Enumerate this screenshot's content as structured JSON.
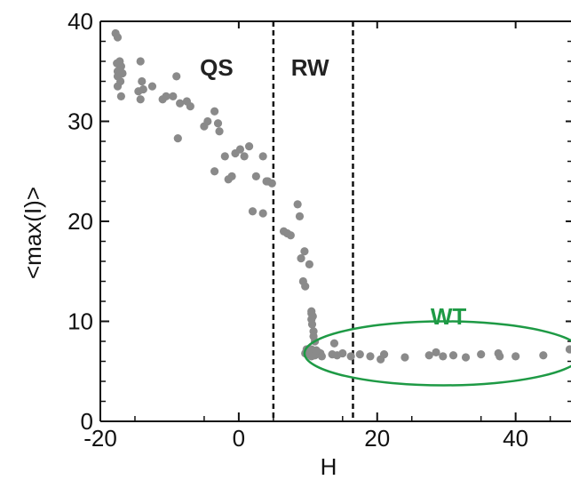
{
  "chart_data": {
    "type": "scatter",
    "xlabel": "H",
    "ylabel": "<max(I)>",
    "xlim": [
      -20,
      48
    ],
    "ylim": [
      0,
      40
    ],
    "x_ticks": [
      "-20",
      "0",
      "20",
      "40"
    ],
    "x_tick_values": [
      -20,
      0,
      20,
      40
    ],
    "y_ticks": [
      "0",
      "10",
      "20",
      "30",
      "40"
    ],
    "y_tick_values": [
      0,
      10,
      20,
      30,
      40
    ],
    "grid": false,
    "marker_color": "#8a8a8a",
    "vlines": [
      {
        "x": 5,
        "style": "dashed",
        "color": "#111111"
      },
      {
        "x": 16.5,
        "style": "dashed",
        "color": "#111111"
      }
    ],
    "region_labels": [
      {
        "text": "QS",
        "x": -3.2,
        "y": 35.4,
        "color": "#222222"
      },
      {
        "text": "RW",
        "x": 10.3,
        "y": 35.4,
        "color": "#222222"
      },
      {
        "text": "WT",
        "x": 30.3,
        "y": 10.5,
        "color": "#1e9a45"
      }
    ],
    "ellipse": {
      "label": "WT",
      "cx": 29.6,
      "cy": 6.8,
      "rx": 20.1,
      "ry": 3.2,
      "color": "#1e9a45"
    },
    "series": [
      {
        "x": [
          -17.8,
          -17.5,
          -17.2,
          -17.6,
          -17.0,
          -17.5,
          -17.2,
          -16.8,
          -17.5,
          -17.1,
          -17.5,
          -17.0,
          -14.2,
          -14.0,
          -14.5,
          -13.8,
          -14.2,
          -12.5,
          -11.0,
          -10.5,
          -9.5,
          -9.0,
          -8.5,
          -8.8,
          -7.5,
          -7.0,
          -5.0,
          -4.5,
          -3.5,
          -3.0,
          -2.8,
          -3.5,
          -2.0,
          -1.5,
          -1.0,
          -0.5,
          0.2,
          0.8,
          1.5,
          2.5,
          3.5,
          4.0,
          4.2,
          4.8,
          2.0,
          3.5,
          6.5,
          7.0,
          7.5,
          8.5,
          8.8,
          9.0,
          9.3,
          9.5,
          9.6,
          10.2,
          10.5,
          10.7,
          10.5,
          10.5,
          10.6,
          10.8,
          10.8,
          11.0,
          10.5,
          11.5,
          9.8,
          10.5,
          10.8,
          11.2,
          11.5,
          9.6,
          10.0,
          10.5,
          11.0,
          11.8,
          12.0,
          13.5,
          13.8,
          14.2,
          15.0,
          16.2,
          17.5,
          19.0,
          20.5,
          21.0,
          24.0,
          27.5,
          28.5,
          29.5,
          31.0,
          32.8,
          35.0,
          37.5,
          37.7,
          40.0,
          44.0,
          47.8
        ],
        "y": [
          38.8,
          38.4,
          36.0,
          35.8,
          35.5,
          35.0,
          35.2,
          34.8,
          34.5,
          34.0,
          33.5,
          32.5,
          36.0,
          34.0,
          33.0,
          33.2,
          32.2,
          33.5,
          32.2,
          32.5,
          32.5,
          34.5,
          31.8,
          28.3,
          32.0,
          31.5,
          29.5,
          30.0,
          31.0,
          29.8,
          29.0,
          25.0,
          26.5,
          24.2,
          24.5,
          26.8,
          27.2,
          26.5,
          27.5,
          24.5,
          26.5,
          24.0,
          24.0,
          23.8,
          21.0,
          20.8,
          19.0,
          18.8,
          18.6,
          21.7,
          20.5,
          16.3,
          14.0,
          17.0,
          13.5,
          15.7,
          11.0,
          10.5,
          10.8,
          10.2,
          9.7,
          9.0,
          8.5,
          8.0,
          7.2,
          6.8,
          7.2,
          7.0,
          6.8,
          7.1,
          6.9,
          6.8,
          6.7,
          6.5,
          6.6,
          6.8,
          6.5,
          6.7,
          7.8,
          6.6,
          6.8,
          6.5,
          6.7,
          6.5,
          6.2,
          6.7,
          6.4,
          6.6,
          6.9,
          6.5,
          6.6,
          6.4,
          6.7,
          6.8,
          6.5,
          6.5,
          6.6,
          7.2
        ]
      }
    ]
  }
}
